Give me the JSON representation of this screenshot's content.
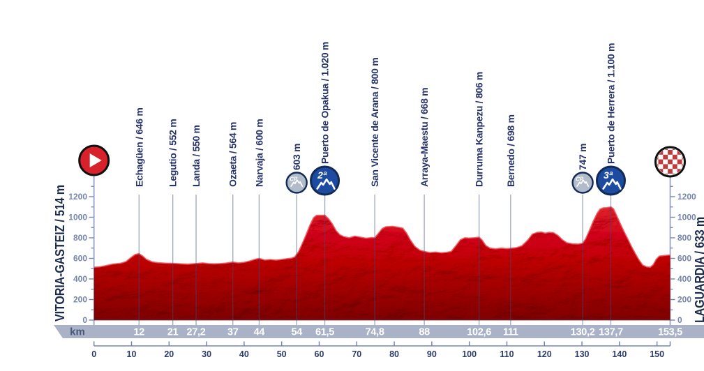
{
  "meta": {
    "description": "Cycling stage elevation profile"
  },
  "colors": {
    "profile_red": "#c01d28",
    "profile_red_light": "#d93238",
    "profile_red_dark": "#7f0d16",
    "profile_top_highlight": "#ea565c",
    "baseline_dark": "#70101a",
    "label_navy": "#26346a",
    "name_navy": "#1c2b4a",
    "axis_slate": "#7585ad",
    "line_slate": "#8d9bbd",
    "band_gray": "#a9b2c6",
    "band_unit_color": "#4a5878",
    "band_number_white": "#ffffff",
    "ruler_navy": "#2c3c68",
    "cat_blue": "#1c4ba0",
    "ring_navy": "#142a56",
    "cp_gray": "#b2bbca",
    "start_red": "#d7222b",
    "checker_red": "#c23b3c",
    "icon_ring_black": "#101010"
  },
  "start": {
    "label": "VITORIA-GASTEIZ / 514 m",
    "icon": "start-play-icon",
    "km": 0,
    "elevation_m": 514
  },
  "finish": {
    "label": "LAGUARDIA / 633 m",
    "icon": "finish-checkered-icon",
    "km": 153.5,
    "elevation_m": 633
  },
  "waypoints": [
    {
      "km": 12,
      "label": "Echagüen / 646 m",
      "type": "town",
      "badge": ""
    },
    {
      "km": 21,
      "label": "Legutio / 552 m",
      "type": "town",
      "badge": ""
    },
    {
      "km": 27.2,
      "label": "Landa / 550 m",
      "type": "town",
      "badge": ""
    },
    {
      "km": 37,
      "label": "Ozaeta / 564 m",
      "type": "town",
      "badge": ""
    },
    {
      "km": 44,
      "label": "Narvaja / 600 m",
      "type": "town",
      "badge": ""
    },
    {
      "km": 54,
      "label": "603 m",
      "type": "cp",
      "badge": "CP"
    },
    {
      "km": 61.5,
      "label": "Puerto de Opakua / 1.020 m",
      "type": "cat2",
      "badge": "2ª"
    },
    {
      "km": 74.8,
      "label": "San Vicente de Arana / 800 m",
      "type": "town",
      "badge": ""
    },
    {
      "km": 88,
      "label": "Arraya-Maestu / 668 m",
      "type": "town",
      "badge": ""
    },
    {
      "km": 102.6,
      "label": "Durruma Kanpezu / 806 m",
      "type": "town",
      "badge": ""
    },
    {
      "km": 111,
      "label": "Bernedo / 698 m",
      "type": "town",
      "badge": ""
    },
    {
      "km": 130.2,
      "label": "747 m",
      "type": "cp",
      "badge": "CP"
    },
    {
      "km": 137.7,
      "label": "Puerto de Herrera / 1.100 m",
      "type": "cat3",
      "badge": "3ª"
    }
  ],
  "km_band": {
    "unit_label": "km",
    "ticks": [
      {
        "km": 12,
        "label": "12"
      },
      {
        "km": 21,
        "label": "21"
      },
      {
        "km": 27.2,
        "label": "27,2"
      },
      {
        "km": 37,
        "label": "37"
      },
      {
        "km": 44,
        "label": "44"
      },
      {
        "km": 54,
        "label": "54"
      },
      {
        "km": 61.5,
        "label": "61,5"
      },
      {
        "km": 74.8,
        "label": "74,8"
      },
      {
        "km": 88,
        "label": "88"
      },
      {
        "km": 102.6,
        "label": "102,6"
      },
      {
        "km": 111,
        "label": "111"
      },
      {
        "km": 130.2,
        "label": "130,2"
      },
      {
        "km": 137.7,
        "label": "137,7"
      },
      {
        "km": 153.5,
        "label": "153,5"
      }
    ]
  },
  "y_axis": {
    "labels": [
      "0",
      "200",
      "400",
      "600",
      "800",
      "1000",
      "1200"
    ],
    "step_m": 200,
    "minor_step_m": 100,
    "max_minor_m": 1300
  },
  "ruler": {
    "ticks": [
      {
        "km": 0,
        "label": "0"
      },
      {
        "km": 10,
        "label": "10"
      },
      {
        "km": 20,
        "label": "20"
      },
      {
        "km": 30,
        "label": "30"
      },
      {
        "km": 40,
        "label": "40"
      },
      {
        "km": 50,
        "label": "50"
      },
      {
        "km": 60,
        "label": "60"
      },
      {
        "km": 70,
        "label": "70"
      },
      {
        "km": 80,
        "label": "80"
      },
      {
        "km": 90,
        "label": "90"
      },
      {
        "km": 100,
        "label": "100"
      },
      {
        "km": 110,
        "label": "110"
      },
      {
        "km": 120,
        "label": "120"
      },
      {
        "km": 130,
        "label": "130"
      },
      {
        "km": 140,
        "label": "140"
      },
      {
        "km": 150,
        "label": "150"
      }
    ]
  },
  "chart_data": {
    "type": "area",
    "title": "Stage elevation profile: Vitoria-Gasteiz to Laguardia",
    "xlabel": "km",
    "ylabel": "m",
    "xlim": [
      0,
      153.5
    ],
    "ylim": [
      0,
      1300
    ],
    "grid": false,
    "start": {
      "name": "Vitoria-Gasteiz",
      "km": 0,
      "elevation_m": 514
    },
    "finish": {
      "name": "Laguardia",
      "km": 153.5,
      "elevation_m": 633
    },
    "markers": [
      {
        "km": 12,
        "name": "Echagüen",
        "elevation_m": 646,
        "category": "town"
      },
      {
        "km": 21,
        "name": "Legutio",
        "elevation_m": 552,
        "category": "town"
      },
      {
        "km": 27.2,
        "name": "Landa",
        "elevation_m": 550,
        "category": "town"
      },
      {
        "km": 37,
        "name": "Ozaeta",
        "elevation_m": 564,
        "category": "town"
      },
      {
        "km": 44,
        "name": "Narvaja",
        "elevation_m": 600,
        "category": "town"
      },
      {
        "km": 54,
        "name": "603 m",
        "elevation_m": 603,
        "category": "CP"
      },
      {
        "km": 61.5,
        "name": "Puerto de Opakua",
        "elevation_m": 1020,
        "category": "2ª"
      },
      {
        "km": 74.8,
        "name": "San Vicente de Arana",
        "elevation_m": 800,
        "category": "town"
      },
      {
        "km": 88,
        "name": "Arraya-Maestu",
        "elevation_m": 668,
        "category": "town"
      },
      {
        "km": 102.6,
        "name": "Durruma Kanpezu",
        "elevation_m": 806,
        "category": "town"
      },
      {
        "km": 111,
        "name": "Bernedo",
        "elevation_m": 698,
        "category": "town"
      },
      {
        "km": 130.2,
        "name": "747 m",
        "elevation_m": 747,
        "category": "CP"
      },
      {
        "km": 137.7,
        "name": "Puerto de Herrera",
        "elevation_m": 1100,
        "category": "3ª"
      }
    ],
    "profile_points": [
      [
        0,
        514
      ],
      [
        1.5,
        518
      ],
      [
        3,
        528
      ],
      [
        5,
        545
      ],
      [
        7,
        552
      ],
      [
        8.5,
        568
      ],
      [
        10,
        612
      ],
      [
        11,
        638
      ],
      [
        12,
        646
      ],
      [
        13,
        622
      ],
      [
        14,
        590
      ],
      [
        15.5,
        566
      ],
      [
        17,
        558
      ],
      [
        19,
        553
      ],
      [
        21,
        552
      ],
      [
        23,
        547
      ],
      [
        25,
        544
      ],
      [
        27.2,
        550
      ],
      [
        29,
        556
      ],
      [
        30.5,
        549
      ],
      [
        32,
        547
      ],
      [
        33.5,
        549
      ],
      [
        35,
        553
      ],
      [
        37,
        564
      ],
      [
        38.5,
        556
      ],
      [
        40,
        562
      ],
      [
        41.5,
        575
      ],
      [
        43,
        592
      ],
      [
        44,
        600
      ],
      [
        45.5,
        584
      ],
      [
        47,
        589
      ],
      [
        48.5,
        583
      ],
      [
        50,
        590
      ],
      [
        51.5,
        597
      ],
      [
        52.7,
        603
      ],
      [
        53.5,
        615
      ],
      [
        54.5,
        665
      ],
      [
        55.5,
        745
      ],
      [
        56.5,
        830
      ],
      [
        57.5,
        920
      ],
      [
        58.5,
        995
      ],
      [
        59.3,
        1018
      ],
      [
        61.5,
        1020
      ],
      [
        62.5,
        985
      ],
      [
        63.5,
        935
      ],
      [
        64.5,
        870
      ],
      [
        65.5,
        830
      ],
      [
        66.5,
        812
      ],
      [
        68,
        800
      ],
      [
        69.5,
        816
      ],
      [
        71,
        806
      ],
      [
        72.5,
        796
      ],
      [
        74,
        803
      ],
      [
        74.8,
        800
      ],
      [
        75.8,
        845
      ],
      [
        76.8,
        890
      ],
      [
        77.8,
        908
      ],
      [
        79.5,
        912
      ],
      [
        81,
        903
      ],
      [
        82.3,
        893
      ],
      [
        83.3,
        845
      ],
      [
        84.3,
        778
      ],
      [
        85.5,
        715
      ],
      [
        86.8,
        680
      ],
      [
        88,
        668
      ],
      [
        89.5,
        656
      ],
      [
        91,
        661
      ],
      [
        92.5,
        654
      ],
      [
        94,
        658
      ],
      [
        95.2,
        668
      ],
      [
        96.4,
        722
      ],
      [
        97.6,
        780
      ],
      [
        98.8,
        800
      ],
      [
        100,
        797
      ],
      [
        101.3,
        801
      ],
      [
        102.6,
        806
      ],
      [
        103.4,
        778
      ],
      [
        104.4,
        725
      ],
      [
        105.5,
        700
      ],
      [
        107,
        692
      ],
      [
        108.5,
        700
      ],
      [
        110,
        695
      ],
      [
        111,
        698
      ],
      [
        112.5,
        704
      ],
      [
        114,
        722
      ],
      [
        115.5,
        775
      ],
      [
        116.8,
        835
      ],
      [
        118,
        852
      ],
      [
        119.2,
        856
      ],
      [
        120.2,
        845
      ],
      [
        121.2,
        853
      ],
      [
        122.4,
        850
      ],
      [
        123.6,
        823
      ],
      [
        124.8,
        780
      ],
      [
        126,
        752
      ],
      [
        127.5,
        742
      ],
      [
        129,
        739
      ],
      [
        130.2,
        747
      ],
      [
        131,
        790
      ],
      [
        132,
        872
      ],
      [
        133,
        960
      ],
      [
        134,
        1035
      ],
      [
        134.8,
        1078
      ],
      [
        135.6,
        1090
      ],
      [
        136.6,
        1093
      ],
      [
        137.7,
        1100
      ],
      [
        138.4,
        1082
      ],
      [
        139.2,
        1020
      ],
      [
        140.2,
        940
      ],
      [
        141.2,
        862
      ],
      [
        142.2,
        790
      ],
      [
        143.2,
        715
      ],
      [
        144.2,
        648
      ],
      [
        145.2,
        585
      ],
      [
        146.2,
        535
      ],
      [
        147.2,
        518
      ],
      [
        148.2,
        514
      ],
      [
        149,
        540
      ],
      [
        149.8,
        592
      ],
      [
        150.6,
        622
      ],
      [
        151.5,
        626
      ],
      [
        152.5,
        630
      ],
      [
        153.5,
        633
      ]
    ]
  }
}
